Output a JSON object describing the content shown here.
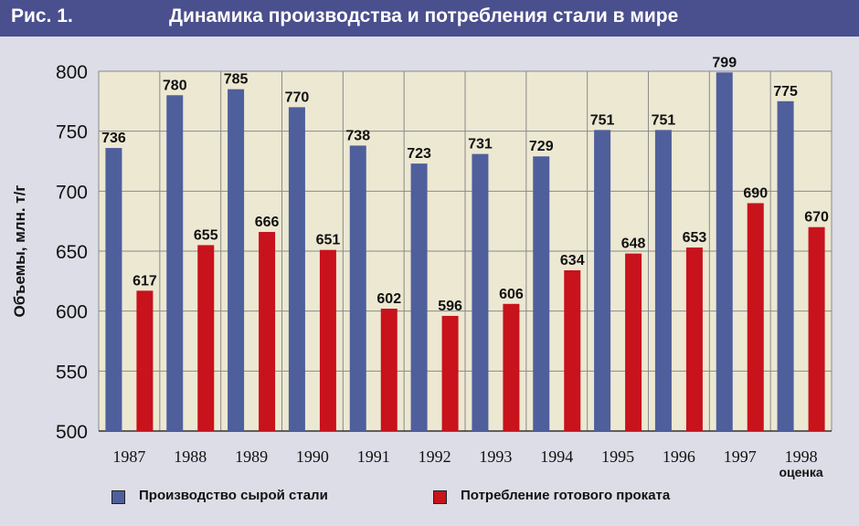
{
  "header": {
    "fig_label": "Рис. 1.",
    "title": "Динамика производства и потребления стали в мире"
  },
  "colors": {
    "header_bg": "#4a4f8e",
    "plot_bg": "#ece8d2",
    "series_blue": "#4f5f9c",
    "series_red": "#c8121c"
  },
  "chart_data": {
    "type": "bar",
    "title": "Динамика производства и потребления стали в мире",
    "ylabel": "Объемы, млн. т/г",
    "xlabel": "",
    "ylim": [
      500,
      800
    ],
    "yticks": [
      500,
      550,
      600,
      650,
      700,
      750,
      800
    ],
    "grid": true,
    "legend": "bottom",
    "categories": [
      "1987",
      "1988",
      "1989",
      "1990",
      "1991",
      "1992",
      "1993",
      "1994",
      "1995",
      "1996",
      "1997",
      "1998"
    ],
    "category_note": {
      "index": 11,
      "text": "оценка"
    },
    "series": [
      {
        "name": "Производство сырой стали",
        "color": "#4f5f9c",
        "values": [
          736,
          780,
          785,
          770,
          738,
          723,
          731,
          729,
          751,
          751,
          799,
          775
        ]
      },
      {
        "name": "Потребление готового проката",
        "color": "#c8121c",
        "values": [
          617,
          655,
          666,
          651,
          602,
          596,
          606,
          634,
          648,
          653,
          690,
          670
        ]
      }
    ]
  }
}
